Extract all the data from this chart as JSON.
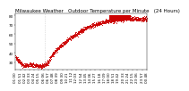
{
  "title": "Milwaukee Weather   Outdoor Temperature per Minute   (24 Hours)",
  "background_color": "#ffffff",
  "plot_bg_color": "#ffffff",
  "dot_color": "#cc0000",
  "legend_box_color": "#cc0000",
  "vline_color": "#aaaaaa",
  "n_points": 1440,
  "ylim": [
    22,
    82
  ],
  "yticks": [
    30,
    40,
    50,
    60,
    70,
    80
  ],
  "xlim": [
    0,
    1439
  ],
  "title_fontsize": 4.0,
  "tick_fontsize": 3.0,
  "markersize": 0.4
}
